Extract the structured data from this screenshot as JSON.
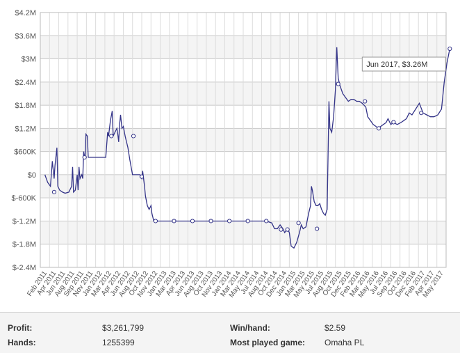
{
  "chart_data": {
    "type": "line",
    "y_ticks": [
      "$4.2M",
      "$3.6M",
      "$3M",
      "$2.4M",
      "$1.8M",
      "$1.2M",
      "$600K",
      "$0",
      "$-600K",
      "$-1.2M",
      "$-1.8M",
      "$-2.4M"
    ],
    "ylim": [
      -2400000,
      4200000
    ],
    "x_ticks": [
      "Feb 2011",
      "Apr 2011",
      "Jun 2011",
      "Aug 2011",
      "Sep 2011",
      "Nov 2011",
      "Jan 2012",
      "Mar 2012",
      "Apr 2012",
      "Jun 2012",
      "Aug 2012",
      "Oct 2012",
      "Nov 2012",
      "Jan 2013",
      "Mar 2013",
      "Apr 2013",
      "Jun 2013",
      "Aug 2013",
      "Oct 2013",
      "Nov 2013",
      "Jan 2014",
      "Mar 2014",
      "May 2014",
      "Jul 2014",
      "Aug 2014",
      "Oct 2014",
      "Dec 2014",
      "Jan 2015",
      "Mar 2015",
      "May 2015",
      "Jul 2015",
      "Aug 2015",
      "Oct 2015",
      "Dec 2015",
      "Feb 2016",
      "Mar 2016",
      "May 2016",
      "Jul 2016",
      "Sep 2016",
      "Oct 2016",
      "Dec 2016",
      "Feb 2017",
      "Apr 2017",
      "May 2017"
    ],
    "grid": true,
    "line_color": "#333388",
    "series": [
      {
        "values": [
          [
            0,
            0
          ],
          [
            0.3,
            -200000
          ],
          [
            0.6,
            -300000
          ],
          [
            0.8,
            350000
          ],
          [
            1.0,
            -100000
          ],
          [
            1.1,
            250000
          ],
          [
            1.3,
            700000
          ],
          [
            1.4,
            -300000
          ],
          [
            1.6,
            -400000
          ],
          [
            1.9,
            -450000
          ],
          [
            2.2,
            -480000
          ],
          [
            2.6,
            -450000
          ],
          [
            2.9,
            -300000
          ],
          [
            3.0,
            200000
          ],
          [
            3.1,
            -450000
          ],
          [
            3.3,
            -400000
          ],
          [
            3.5,
            0
          ],
          [
            3.6,
            -400000
          ],
          [
            3.7,
            200000
          ],
          [
            3.8,
            -100000
          ],
          [
            4.0,
            0
          ],
          [
            4.1,
            -100000
          ],
          [
            4.2,
            600000
          ],
          [
            4.35,
            400000
          ],
          [
            4.45,
            1050000
          ],
          [
            4.6,
            1000000
          ],
          [
            4.7,
            450000
          ],
          [
            5.0,
            450000
          ],
          [
            5.5,
            450000
          ],
          [
            6.0,
            450000
          ],
          [
            6.6,
            450000
          ],
          [
            6.8,
            1100000
          ],
          [
            6.9,
            1000000
          ],
          [
            7.1,
            1400000
          ],
          [
            7.3,
            1650000
          ],
          [
            7.4,
            1000000
          ],
          [
            7.6,
            1100000
          ],
          [
            7.8,
            1200000
          ],
          [
            7.9,
            1050000
          ],
          [
            8.0,
            850000
          ],
          [
            8.1,
            1300000
          ],
          [
            8.2,
            1550000
          ],
          [
            8.35,
            1200000
          ],
          [
            8.5,
            1250000
          ],
          [
            8.7,
            1000000
          ],
          [
            8.8,
            900000
          ],
          [
            9.0,
            700000
          ],
          [
            9.2,
            400000
          ],
          [
            9.5,
            0
          ],
          [
            10.0,
            0
          ],
          [
            10.3,
            0
          ],
          [
            10.5,
            -100000
          ],
          [
            10.6,
            100000
          ],
          [
            10.8,
            -300000
          ],
          [
            10.9,
            -550000
          ],
          [
            11.1,
            -800000
          ],
          [
            11.3,
            -900000
          ],
          [
            11.5,
            -800000
          ],
          [
            11.6,
            -1000000
          ],
          [
            11.8,
            -1200000
          ],
          [
            12.0,
            -1200000
          ],
          [
            14.0,
            -1200000
          ],
          [
            16.0,
            -1200000
          ],
          [
            18.0,
            -1200000
          ],
          [
            20.0,
            -1200000
          ],
          [
            22.0,
            -1200000
          ],
          [
            24.0,
            -1200000
          ],
          [
            24.6,
            -1250000
          ],
          [
            24.9,
            -1400000
          ],
          [
            25.2,
            -1400000
          ],
          [
            25.5,
            -1300000
          ],
          [
            25.8,
            -1400000
          ],
          [
            26.0,
            -1500000
          ],
          [
            26.3,
            -1400000
          ],
          [
            26.5,
            -1500000
          ],
          [
            26.7,
            -1850000
          ],
          [
            27.0,
            -1900000
          ],
          [
            27.3,
            -1750000
          ],
          [
            27.6,
            -1500000
          ],
          [
            27.8,
            -1300000
          ],
          [
            28.0,
            -1400000
          ],
          [
            28.3,
            -1350000
          ],
          [
            28.6,
            -1000000
          ],
          [
            28.8,
            -800000
          ],
          [
            28.9,
            -300000
          ],
          [
            29.0,
            -400000
          ],
          [
            29.2,
            -700000
          ],
          [
            29.4,
            -800000
          ],
          [
            29.6,
            -800000
          ],
          [
            29.8,
            -750000
          ],
          [
            30.0,
            -900000
          ],
          [
            30.2,
            -1000000
          ],
          [
            30.4,
            -1050000
          ],
          [
            30.6,
            -900000
          ],
          [
            30.8,
            1900000
          ],
          [
            30.9,
            1200000
          ],
          [
            31.1,
            1100000
          ],
          [
            31.3,
            1500000
          ],
          [
            31.5,
            2200000
          ],
          [
            31.65,
            3300000
          ],
          [
            31.8,
            2500000
          ],
          [
            32.0,
            2300000
          ],
          [
            32.3,
            2100000
          ],
          [
            32.6,
            2000000
          ],
          [
            32.9,
            1900000
          ],
          [
            33.2,
            1950000
          ],
          [
            33.5,
            1950000
          ],
          [
            33.8,
            1900000
          ],
          [
            34.1,
            1900000
          ],
          [
            34.4,
            1850000
          ],
          [
            34.6,
            1800000
          ],
          [
            34.8,
            1750000
          ],
          [
            35.0,
            1500000
          ],
          [
            35.3,
            1400000
          ],
          [
            35.6,
            1300000
          ],
          [
            35.9,
            1250000
          ],
          [
            36.1,
            1200000
          ],
          [
            36.4,
            1250000
          ],
          [
            36.7,
            1300000
          ],
          [
            37.0,
            1350000
          ],
          [
            37.2,
            1450000
          ],
          [
            37.5,
            1300000
          ],
          [
            37.8,
            1350000
          ],
          [
            38.2,
            1300000
          ],
          [
            38.6,
            1350000
          ],
          [
            38.9,
            1400000
          ],
          [
            39.2,
            1450000
          ],
          [
            39.5,
            1600000
          ],
          [
            39.8,
            1550000
          ],
          [
            40.2,
            1700000
          ],
          [
            40.6,
            1850000
          ],
          [
            41.0,
            1600000
          ],
          [
            41.4,
            1550000
          ],
          [
            41.8,
            1500000
          ],
          [
            42.2,
            1500000
          ],
          [
            42.6,
            1550000
          ],
          [
            43.0,
            1700000
          ],
          [
            43.3,
            2400000
          ],
          [
            43.6,
            2900000
          ],
          [
            43.9,
            3261799
          ]
        ],
        "markers": [
          [
            1.0,
            -450000
          ],
          [
            4.3,
            450000
          ],
          [
            7.2,
            1000000
          ],
          [
            9.6,
            1000000
          ],
          [
            10.5,
            -50000
          ],
          [
            12.0,
            -1200000
          ],
          [
            14.0,
            -1200000
          ],
          [
            16.0,
            -1200000
          ],
          [
            18.0,
            -1200000
          ],
          [
            20.0,
            -1200000
          ],
          [
            22.0,
            -1200000
          ],
          [
            24.0,
            -1200000
          ],
          [
            25.6,
            -1420000
          ],
          [
            26.3,
            -1420000
          ],
          [
            27.5,
            -1250000
          ],
          [
            29.5,
            -1400000
          ],
          [
            31.8,
            2350000
          ],
          [
            34.7,
            1900000
          ],
          [
            36.2,
            1200000
          ],
          [
            37.8,
            1360000
          ],
          [
            40.8,
            1600000
          ],
          [
            43.9,
            3261799
          ]
        ]
      }
    ],
    "tooltip": "Jun 2017, $3.26M"
  },
  "stats": {
    "profit_label": "Profit:",
    "profit_value": "$3,261,799",
    "hands_label": "Hands:",
    "hands_value": "1255399",
    "winhand_label": "Win/hand:",
    "winhand_value": "$2.59",
    "game_label": "Most played game:",
    "game_value": "Omaha PL"
  }
}
